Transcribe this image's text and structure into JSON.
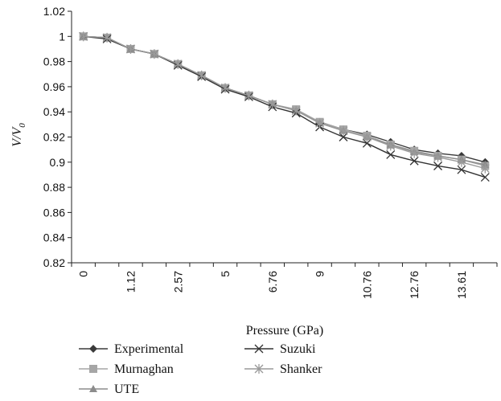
{
  "chart_data": {
    "type": "line",
    "xlabel": "Pressure (GPa)",
    "ylabel": "V/V0",
    "ylabel_base": "V/V",
    "ylabel_sub": "0",
    "ylim": [
      0.82,
      1.02
    ],
    "y_ticks": [
      "1.02",
      "1",
      "0.98",
      "0.96",
      "0.94",
      "0.92",
      "0.9",
      "0.88",
      "0.86",
      "0.84",
      "0.82"
    ],
    "x_ticks": [
      "0",
      "1.12",
      "2.57",
      "5",
      "6.76",
      "9",
      "10.76",
      "12.76",
      "13.61"
    ],
    "categories": [
      "0",
      "",
      "1.12",
      "",
      "2.57",
      "",
      "5",
      "",
      "6.76",
      "",
      "9",
      "",
      "10.76",
      "",
      "12.76",
      "",
      "13.61",
      ""
    ],
    "grid": false,
    "legend_position": "bottom",
    "series": [
      {
        "name": "Experimental",
        "marker": "diamond",
        "color": "#3a3a3a",
        "values": [
          1.0,
          0.999,
          0.99,
          0.986,
          0.978,
          0.969,
          0.959,
          0.953,
          0.946,
          0.941,
          0.932,
          0.926,
          0.922,
          0.916,
          0.91,
          0.907,
          0.905,
          0.9
        ]
      },
      {
        "name": "Murnaghan",
        "marker": "square",
        "color": "#a6a6a6",
        "values": [
          1.0,
          0.999,
          0.99,
          0.986,
          0.978,
          0.969,
          0.959,
          0.953,
          0.946,
          0.942,
          0.932,
          0.926,
          0.921,
          0.914,
          0.909,
          0.905,
          0.902,
          0.897
        ]
      },
      {
        "name": "UTE",
        "marker": "triangle",
        "color": "#8c8c8c",
        "values": [
          1.0,
          0.999,
          0.99,
          0.986,
          0.978,
          0.969,
          0.959,
          0.953,
          0.946,
          0.941,
          0.931,
          0.925,
          0.92,
          0.914,
          0.908,
          0.905,
          0.902,
          0.898
        ]
      },
      {
        "name": "Suzuki",
        "marker": "x",
        "color": "#333333",
        "values": [
          1.0,
          0.998,
          0.99,
          0.986,
          0.977,
          0.968,
          0.958,
          0.952,
          0.944,
          0.939,
          0.928,
          0.92,
          0.915,
          0.906,
          0.901,
          0.897,
          0.894,
          0.888
        ]
      },
      {
        "name": "Shanker",
        "marker": "star",
        "color": "#9a9a9a",
        "values": [
          1.0,
          0.999,
          0.99,
          0.986,
          0.978,
          0.969,
          0.959,
          0.953,
          0.946,
          0.941,
          0.931,
          0.925,
          0.92,
          0.913,
          0.907,
          0.904,
          0.9,
          0.895
        ]
      }
    ]
  }
}
